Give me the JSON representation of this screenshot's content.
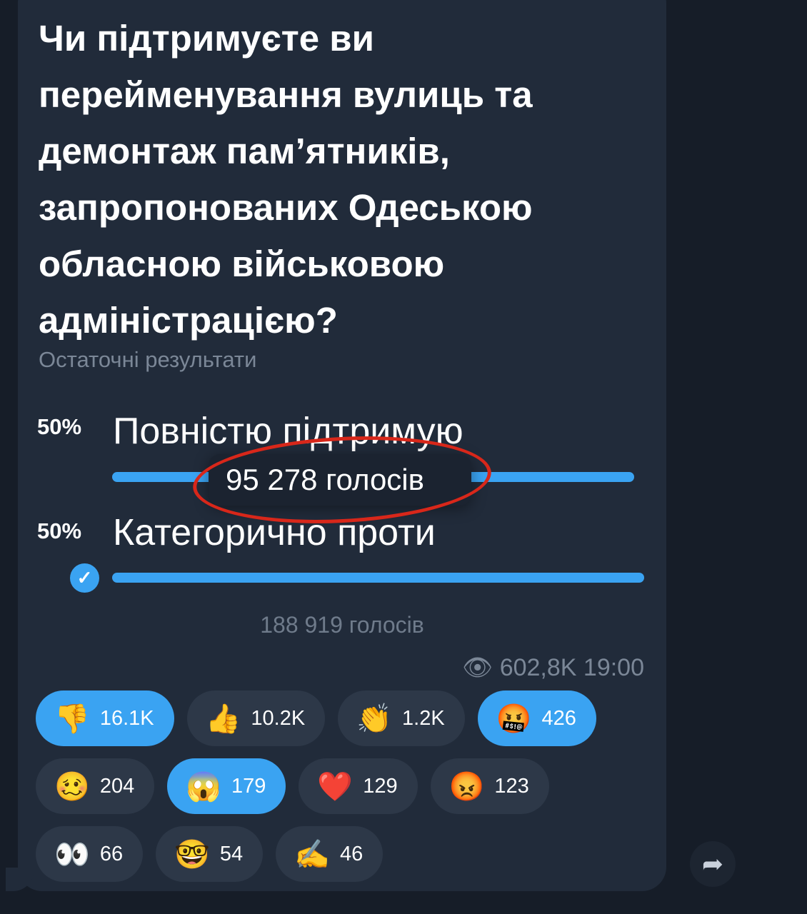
{
  "poll": {
    "question": "Чи підтримуєте ви перейменування вулиць та демонтаж пам’ятників, запропонованих Одеською обласною військовою адміністрацією?",
    "status": "Остаточні результати",
    "options": [
      {
        "percent": "50%",
        "label": "Повністю підтримую",
        "fill": 100,
        "chosen": false
      },
      {
        "percent": "50%",
        "label": "Категорично проти",
        "fill": 100,
        "chosen": true
      }
    ],
    "tooltip": "95 278 голосів",
    "total_votes": "188 919 голосів"
  },
  "meta": {
    "views": "602,8K",
    "time": "19:00"
  },
  "reactions": [
    {
      "emoji": "👎",
      "count": "16.1K",
      "active": true
    },
    {
      "emoji": "👍",
      "count": "10.2K",
      "active": false
    },
    {
      "emoji": "👏",
      "count": "1.2K",
      "active": false
    },
    {
      "emoji": "🤬",
      "count": "426",
      "active": true
    },
    {
      "emoji": "🥴",
      "count": "204",
      "active": false
    },
    {
      "emoji": "😱",
      "count": "179",
      "active": true
    },
    {
      "emoji": "❤️",
      "count": "129",
      "active": false
    },
    {
      "emoji": "😡",
      "count": "123",
      "active": false
    },
    {
      "emoji": "👀",
      "count": "66",
      "active": false
    },
    {
      "emoji": "🤓",
      "count": "54",
      "active": false
    },
    {
      "emoji": "✍️",
      "count": "46",
      "active": false
    }
  ],
  "colors": {
    "accent": "#3aa3f2",
    "bubble": "#212b3a",
    "annotation": "#d8271a"
  }
}
